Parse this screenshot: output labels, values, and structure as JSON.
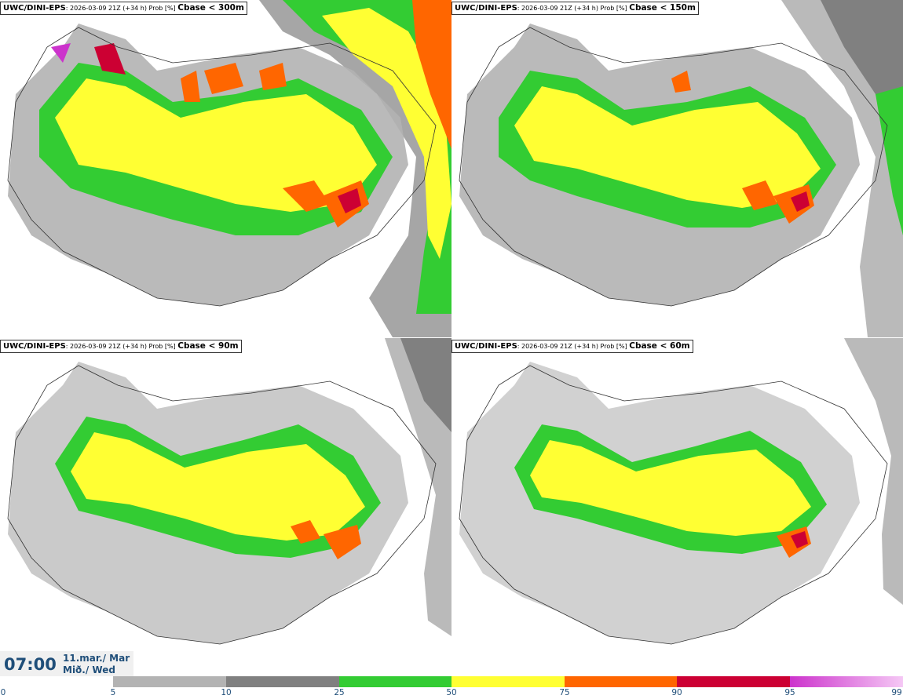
{
  "panels": [
    {
      "model": "UWC/DINI-EPS",
      "meta": ": 2026-03-09 21Z (+34 h) Prob [%] ",
      "variable": "Cbase < 300m"
    },
    {
      "model": "UWC/DINI-EPS",
      "meta": ": 2026-03-09 21Z (+34 h) Prob [%] ",
      "variable": "Cbase < 150m"
    },
    {
      "model": "UWC/DINI-EPS",
      "meta": ": 2026-03-09 21Z (+34 h) Prob [%] ",
      "variable": "Cbase < 90m"
    },
    {
      "model": "UWC/DINI-EPS",
      "meta": ": 2026-03-09 21Z (+34 h) Prob [%] ",
      "variable": "Cbase < 60m"
    }
  ],
  "time": {
    "clock": "07:00",
    "date_line1": "11.mar./ Mar",
    "date_line2": "Mið./ Wed"
  },
  "colorbar": {
    "ticks": [
      "0",
      "5",
      "10",
      "25",
      "50",
      "75",
      "90",
      "95",
      "99"
    ],
    "colors": [
      "#ffffff",
      "#b3b3b3",
      "#808080",
      "#33cc33",
      "#ffff33",
      "#ff6600",
      "#cc0033",
      "#cc33cc"
    ],
    "last_gradient_end": "#f5c8f5"
  }
}
